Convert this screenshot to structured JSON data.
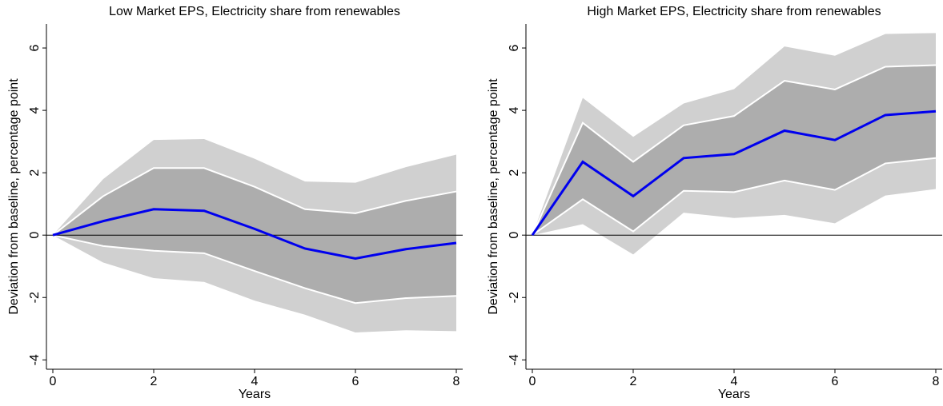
{
  "chart_data": [
    {
      "type": "band-line",
      "title": "Low Market EPS, Electricity share from renewables",
      "x_label": "Years",
      "y_label": "Deviation from baseline, percentage point",
      "x": [
        0,
        1,
        2,
        3,
        4,
        5,
        6,
        7,
        8
      ],
      "bands": [
        {
          "color": "#d0d0d0",
          "upper": [
            0,
            1.8,
            3.05,
            3.08,
            2.45,
            1.72,
            1.68,
            2.18,
            2.58
          ],
          "lower": [
            0,
            -0.88,
            -1.38,
            -1.5,
            -2.1,
            -2.55,
            -3.12,
            -3.05,
            -3.08
          ]
        },
        {
          "color": "#adadad",
          "edge": "#ffffff",
          "upper": [
            0,
            1.25,
            2.15,
            2.15,
            1.55,
            0.83,
            0.7,
            1.1,
            1.4
          ],
          "lower": [
            0,
            -0.35,
            -0.5,
            -0.58,
            -1.15,
            -1.7,
            -2.18,
            -2.02,
            -1.95
          ]
        }
      ],
      "line": {
        "color": "#0000ee",
        "values": [
          0,
          0.45,
          0.83,
          0.78,
          0.2,
          -0.43,
          -0.75,
          -0.45,
          -0.25
        ]
      },
      "hline": 0,
      "xlim": [
        -0.127,
        8.127
      ],
      "xticks": [
        0,
        2,
        4,
        6,
        8
      ],
      "ylim": [
        -4.3,
        6.77
      ],
      "yticks": [
        -4,
        -2,
        0,
        2,
        4,
        6
      ]
    },
    {
      "type": "band-line",
      "title": "High Market EPS, Electricity share from renewables",
      "x_label": "Years",
      "y_label": "Deviation from baseline, percentage point",
      "x": [
        0,
        1,
        2,
        3,
        4,
        5,
        6,
        7,
        8
      ],
      "bands": [
        {
          "color": "#d0d0d0",
          "upper": [
            0,
            4.4,
            3.15,
            4.22,
            4.68,
            6.05,
            5.75,
            6.45,
            6.48
          ],
          "lower": [
            0,
            0.35,
            -0.62,
            0.72,
            0.55,
            0.65,
            0.38,
            1.27,
            1.48
          ]
        },
        {
          "color": "#adadad",
          "edge": "#ffffff",
          "upper": [
            0,
            3.6,
            2.35,
            3.52,
            3.82,
            4.95,
            4.67,
            5.4,
            5.45
          ],
          "lower": [
            0,
            1.15,
            0.12,
            1.42,
            1.38,
            1.75,
            1.45,
            2.3,
            2.47
          ]
        }
      ],
      "line": {
        "color": "#0000ee",
        "values": [
          0,
          2.35,
          1.25,
          2.47,
          2.6,
          3.35,
          3.05,
          3.85,
          3.97
        ]
      },
      "hline": 0,
      "xlim": [
        -0.127,
        8.127
      ],
      "xticks": [
        0,
        2,
        4,
        6,
        8
      ],
      "ylim": [
        -4.3,
        6.77
      ],
      "yticks": [
        -4,
        -2,
        0,
        2,
        4,
        6
      ]
    }
  ]
}
